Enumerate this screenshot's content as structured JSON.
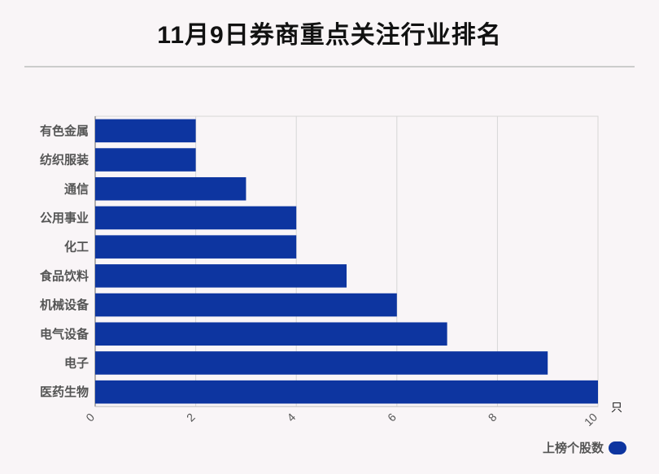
{
  "title": "11月9日券商重点关注行业排名",
  "chart_data": {
    "type": "bar",
    "orientation": "horizontal",
    "categories": [
      "有色金属",
      "纺织服装",
      "通信",
      "公用事业",
      "化工",
      "食品饮料",
      "机械设备",
      "电气设备",
      "电子",
      "医药生物"
    ],
    "series": [
      {
        "name": "上榜个股数",
        "values": [
          2,
          2,
          3,
          4,
          4,
          5,
          6,
          7,
          9,
          10
        ]
      }
    ],
    "xlim": [
      0,
      10
    ],
    "x_ticks": [
      0,
      2,
      4,
      6,
      8,
      10
    ],
    "x_unit": "只",
    "grid": true,
    "legend_position": "bottom-right",
    "bar_color": "#0d35a0"
  }
}
